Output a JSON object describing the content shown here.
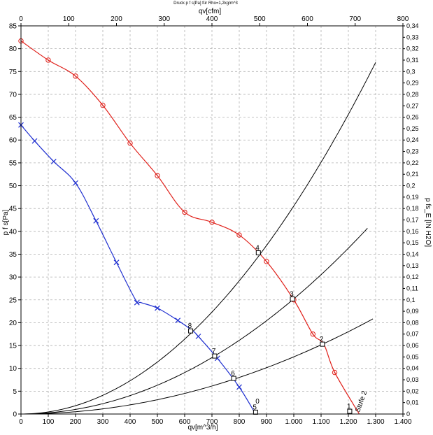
{
  "chart_data": {
    "type": "line",
    "title": "Druck p f s[Pa] für Rho=1,2kg/m^3",
    "xlabel": "qv[m^3/h]",
    "x2label": "qv[cfm]",
    "ylabel": "p  f s[Pa]",
    "y2label": "p fs_E [IN H2O]",
    "xlim": [
      0,
      1400
    ],
    "ylim": [
      0,
      85
    ],
    "x2lim": [
      0,
      800
    ],
    "y2lim": [
      0,
      0.34
    ],
    "grid": true,
    "x_ticks": [
      "0",
      "100",
      "200",
      "300",
      "400",
      "500",
      "600",
      "700",
      "800",
      "900",
      "1.000",
      "1.100",
      "1.200",
      "1.300",
      "1.400"
    ],
    "x2_ticks": [
      "0",
      "100",
      "200",
      "300",
      "400",
      "500",
      "600",
      "700",
      "800"
    ],
    "y_ticks": [
      "0",
      "5",
      "10",
      "15",
      "20",
      "25",
      "30",
      "35",
      "40",
      "45",
      "50",
      "55",
      "60",
      "65",
      "70",
      "75",
      "80",
      "85"
    ],
    "y2_ticks": [
      "0",
      "0,01",
      "0,02",
      "0,03",
      "0,04",
      "0,05",
      "0,06",
      "0,07",
      "0,08",
      "0,09",
      "0,1",
      "0,11",
      "0,12",
      "0,13",
      "0,14",
      "0,15",
      "0,16",
      "0,17",
      "0,18",
      "0,19",
      "0,2",
      "0,21",
      "0,22",
      "0,23",
      "0,24",
      "0,25",
      "0,26",
      "0,27",
      "0,28",
      "0,29",
      "0,3",
      "0,31",
      "0,32",
      "0,33",
      "0,34"
    ],
    "series": [
      {
        "name": "",
        "color": "#e0201a",
        "marker": "circle",
        "points": [
          [
            0,
            81.7
          ],
          [
            100,
            77.5
          ],
          [
            200,
            74
          ],
          [
            300,
            67.6
          ],
          [
            400,
            59.3
          ],
          [
            500,
            52.2
          ],
          [
            600,
            44.2
          ],
          [
            700,
            42
          ],
          [
            800,
            39.2
          ],
          [
            900,
            33.4
          ],
          [
            1000,
            25
          ],
          [
            1070,
            17.5
          ],
          [
            1110,
            15.3
          ],
          [
            1150,
            9.1
          ],
          [
            1240,
            0
          ]
        ],
        "markers": [
          [
            0,
            81.7
          ],
          [
            100,
            77.5
          ],
          [
            200,
            74
          ],
          [
            300,
            67.6
          ],
          [
            400,
            59.3
          ],
          [
            500,
            52.2
          ],
          [
            600,
            44.2
          ],
          [
            700,
            42
          ],
          [
            800,
            39.2
          ],
          [
            900,
            33.4
          ],
          [
            1000,
            25
          ],
          [
            1070,
            17.5
          ],
          [
            1150,
            9.1
          ]
        ]
      },
      {
        "name": "",
        "color": "#2030d0",
        "marker": "x",
        "points": [
          [
            0,
            63.3
          ],
          [
            50,
            59.8
          ],
          [
            120,
            55.3
          ],
          [
            200,
            50.6
          ],
          [
            275,
            42.3
          ],
          [
            350,
            33.2
          ],
          [
            420,
            25
          ],
          [
            440,
            24.4
          ],
          [
            500,
            23.2
          ],
          [
            575,
            20.5
          ],
          [
            630,
            18.2
          ],
          [
            650,
            17
          ],
          [
            720,
            12.2
          ],
          [
            800,
            5.9
          ],
          [
            860,
            0
          ]
        ],
        "markers": [
          [
            0,
            63.3
          ],
          [
            50,
            59.8
          ],
          [
            120,
            55.3
          ],
          [
            200,
            50.6
          ],
          [
            275,
            42.3
          ],
          [
            350,
            33.2
          ],
          [
            425,
            24.4
          ],
          [
            500,
            23.2
          ],
          [
            575,
            20.5
          ],
          [
            650,
            17
          ],
          [
            720,
            12.2
          ],
          [
            800,
            5.9
          ]
        ]
      }
    ],
    "system_curves": [
      {
        "x_end": 1300,
        "y_end": 77
      },
      {
        "x_end": 1275,
        "y_end": 41
      },
      {
        "x_end": 1295,
        "y_end": 21
      }
    ],
    "annotations": [
      {
        "text": "4",
        "x": 870,
        "y": 35.3
      },
      {
        "text": "3",
        "x": 995,
        "y": 25.2
      },
      {
        "text": "2",
        "x": 1105,
        "y": 15.3
      },
      {
        "text": "8",
        "x": 622,
        "y": 18.2
      },
      {
        "text": "7",
        "x": 710,
        "y": 12.7
      },
      {
        "text": "6",
        "x": 780,
        "y": 7.8
      },
      {
        "text": "5",
        "x": 860,
        "y": 0.4
      },
      {
        "text": "1",
        "x": 1205,
        "y": 0.6
      },
      {
        "text": "Stufe 2",
        "x": 1230,
        "y": 0.3
      },
      {
        "text": "0",
        "x": 870,
        "y": 1.7
      }
    ],
    "op_markers": [
      [
        870,
        35.3
      ],
      [
        995,
        25.2
      ],
      [
        1105,
        15.3
      ],
      [
        622,
        18.2
      ],
      [
        710,
        12.7
      ],
      [
        780,
        7.8
      ],
      [
        860,
        0.4
      ],
      [
        1205,
        0.6
      ]
    ]
  }
}
